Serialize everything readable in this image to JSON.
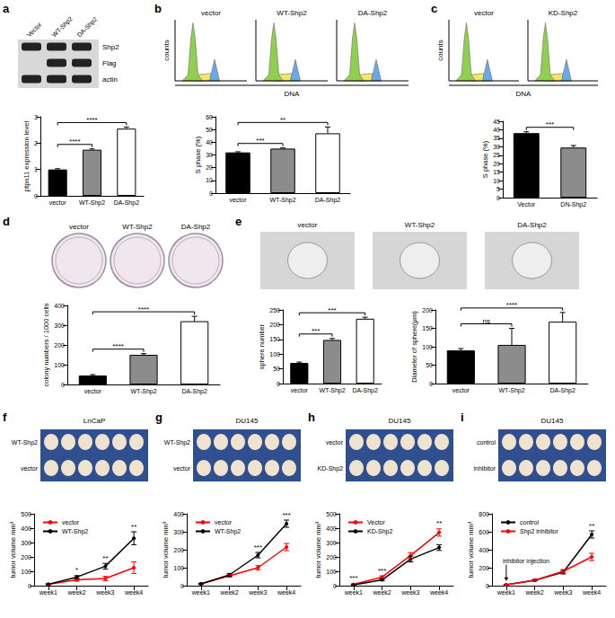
{
  "chart_data": [
    {
      "panel": "a",
      "type": "bar",
      "categories": [
        "vector",
        "WT-Shp2",
        "DA-Shp2"
      ],
      "values": [
        1.0,
        1.75,
        2.55
      ],
      "errors": [
        0.03,
        0.03,
        0.06
      ],
      "colors": [
        "#000000",
        "#8c8c8c",
        "#ffffff"
      ],
      "ylabel": "ptpn11 expression level",
      "ylim": [
        0,
        3
      ],
      "yticks": [
        0,
        1,
        2,
        3
      ],
      "grid": false,
      "annotations": [
        {
          "text": "****",
          "between": [
            "vector",
            "WT-Shp2"
          ]
        },
        {
          "text": "****",
          "between": [
            "vector",
            "DA-Shp2"
          ]
        }
      ]
    },
    {
      "panel": "b",
      "type": "bar",
      "categories": [
        "vector",
        "WT-Shp2",
        "DA-Shp2"
      ],
      "values": [
        32,
        35,
        47
      ],
      "errors": [
        0.5,
        0.5,
        5
      ],
      "colors": [
        "#000000",
        "#8c8c8c",
        "#ffffff"
      ],
      "ylabel": "S phase (%)",
      "ylim": [
        0,
        60
      ],
      "yticks": [
        0,
        10,
        20,
        30,
        40,
        50,
        60
      ],
      "grid": false,
      "annotations": [
        {
          "text": "***",
          "between": [
            "vector",
            "WT-Shp2"
          ]
        },
        {
          "text": "**",
          "between": [
            "vector",
            "DA-Shp2"
          ]
        }
      ]
    },
    {
      "panel": "c",
      "type": "bar",
      "categories": [
        "Vector",
        "DN-Shp2"
      ],
      "values": [
        38,
        29.5
      ],
      "errors": [
        0.8,
        1.2
      ],
      "colors": [
        "#000000",
        "#8c8c8c"
      ],
      "ylabel": "S phase (%)",
      "ylim": [
        0,
        45
      ],
      "yticks": [
        0,
        5,
        10,
        15,
        20,
        25,
        30,
        35,
        40,
        45
      ],
      "grid": false,
      "annotations": [
        {
          "text": "***",
          "between": [
            "Vector",
            "DN-Shp2"
          ]
        }
      ]
    },
    {
      "panel": "d",
      "type": "bar",
      "categories": [
        "vector",
        "WT-Shp2",
        "DA-Shp2"
      ],
      "values": [
        45,
        150,
        320
      ],
      "errors": [
        5,
        6,
        25
      ],
      "colors": [
        "#000000",
        "#8c8c8c",
        "#ffffff"
      ],
      "ylabel": "colony numbers / 1000 cells",
      "ylim": [
        0,
        400
      ],
      "yticks": [
        0,
        100,
        200,
        300,
        400
      ],
      "grid": false,
      "annotations": [
        {
          "text": "****",
          "between": [
            "vector",
            "WT-Shp2"
          ]
        },
        {
          "text": "****",
          "between": [
            "vector",
            "DA-Shp2"
          ]
        }
      ]
    },
    {
      "panel": "e",
      "type": "bar",
      "categories": [
        "vector",
        "WT-Shp2",
        "DA-Shp2"
      ],
      "values": [
        70,
        148,
        220
      ],
      "errors": [
        3,
        5,
        5
      ],
      "colors": [
        "#000000",
        "#8c8c8c",
        "#ffffff"
      ],
      "ylabel": "sphere number",
      "ylim": [
        0,
        250
      ],
      "yticks": [
        0,
        50,
        100,
        150,
        200,
        250
      ],
      "grid": false,
      "annotations": [
        {
          "text": "***",
          "between": [
            "vector",
            "WT-Shp2"
          ]
        },
        {
          "text": "***",
          "between": [
            "vector",
            "DA-Shp2"
          ]
        }
      ]
    },
    {
      "type": "bar",
      "categories": [
        "vector",
        "WT-Shp2",
        "DA-Shp2"
      ],
      "values": [
        90,
        105,
        168
      ],
      "errors": [
        5,
        45,
        25
      ],
      "colors": [
        "#000000",
        "#8c8c8c",
        "#ffffff"
      ],
      "ylabel": "Diameter of sphere(μm)",
      "ylim": [
        0,
        200
      ],
      "yticks": [
        0,
        50,
        100,
        150,
        200
      ],
      "grid": false,
      "annotations": [
        {
          "text": "ns",
          "between": [
            "vector",
            "WT-Shp2"
          ]
        },
        {
          "text": "****",
          "between": [
            "vector",
            "DA-Shp2"
          ]
        }
      ]
    },
    {
      "panel": "f",
      "type": "line",
      "categories": [
        "week1",
        "week2",
        "week3",
        "week4"
      ],
      "series": [
        {
          "name": "vector",
          "color": "#ff0000",
          "values": [
            10,
            40,
            50,
            125
          ],
          "errors": [
            3,
            8,
            15,
            40
          ]
        },
        {
          "name": "WT-Shp2",
          "color": "#000000",
          "values": [
            10,
            60,
            135,
            330
          ],
          "errors": [
            3,
            10,
            20,
            45
          ]
        }
      ],
      "ylabel": "tumor volume mm³",
      "ylim": [
        0,
        500
      ],
      "yticks": [
        0,
        100,
        200,
        300,
        400,
        500
      ],
      "grid": false,
      "legend": "upper left",
      "marker": "circle",
      "annotations": [
        {
          "text": "*",
          "at": "week2"
        },
        {
          "text": "**",
          "at": "week3"
        },
        {
          "text": "**",
          "at": "week4"
        }
      ]
    },
    {
      "panel": "g",
      "type": "line",
      "categories": [
        "week1",
        "week2",
        "week3",
        "week4"
      ],
      "series": [
        {
          "name": "vector",
          "color": "#ff0000",
          "values": [
            10,
            55,
            100,
            215
          ],
          "errors": [
            3,
            8,
            12,
            20
          ]
        },
        {
          "name": "WT-Shp2",
          "color": "#000000",
          "values": [
            10,
            60,
            170,
            345
          ],
          "errors": [
            3,
            8,
            15,
            20
          ]
        }
      ],
      "ylabel": "tumor volume mm³",
      "ylim": [
        0,
        400
      ],
      "yticks": [
        0,
        100,
        200,
        300,
        400
      ],
      "grid": false,
      "legend": "upper left",
      "marker": "circle",
      "annotations": [
        {
          "text": "***",
          "at": "week3"
        },
        {
          "text": "***",
          "at": "week4"
        }
      ]
    },
    {
      "panel": "h",
      "type": "line",
      "categories": [
        "week1",
        "week2",
        "week3",
        "week4"
      ],
      "series": [
        {
          "name": "Vector",
          "color": "#ff0000",
          "values": [
            10,
            60,
            210,
            370
          ],
          "errors": [
            3,
            8,
            20,
            25
          ]
        },
        {
          "name": "KD-Shp2",
          "color": "#000000",
          "values": [
            5,
            40,
            185,
            265
          ],
          "errors": [
            2,
            6,
            20,
            20
          ]
        }
      ],
      "ylabel": "tumor volume mm³",
      "ylim": [
        0,
        500
      ],
      "yticks": [
        0,
        100,
        200,
        300,
        400,
        500
      ],
      "grid": false,
      "legend": "upper left",
      "marker": "circle",
      "annotations": [
        {
          "text": "***",
          "at": "week1"
        },
        {
          "text": "***",
          "at": "week2"
        },
        {
          "text": "**",
          "at": "week4"
        }
      ]
    },
    {
      "panel": "i",
      "type": "line",
      "categories": [
        "week1",
        "week2",
        "week3",
        "week4"
      ],
      "series": [
        {
          "name": "control",
          "color": "#000000",
          "values": [
            10,
            60,
            150,
            570
          ],
          "errors": [
            3,
            8,
            20,
            40
          ]
        },
        {
          "name": "Shp2 inhibitor",
          "color": "#ff0000",
          "values": [
            10,
            60,
            160,
            320
          ],
          "errors": [
            3,
            8,
            20,
            40
          ]
        }
      ],
      "ylabel": "tumor volume mm³",
      "ylim": [
        0,
        800
      ],
      "yticks": [
        0,
        200,
        400,
        600,
        800
      ],
      "grid": false,
      "legend": "upper left",
      "marker": "circle",
      "annotations": [
        {
          "text": "**",
          "at": "week4"
        }
      ],
      "arrow_annotations": [
        {
          "text": "inhibitor injection",
          "at": "week1"
        }
      ]
    }
  ],
  "images": [
    {
      "lanes": [
        "Vector",
        "WT-Shp2",
        "DA-Shp2"
      ],
      "rows": [
        "Shp2",
        "Flag",
        "actin"
      ]
    },
    {
      "titles": [
        "vector",
        "WT-Shp2",
        "DA-Shp2"
      ],
      "ylabel": "counts",
      "xlabel": "DNA"
    },
    {
      "titles": [
        "vector",
        "KD-Shp2"
      ],
      "ylabel": "counts",
      "xlabel": "DNA"
    },
    {
      "titles": [
        "vector",
        "WT-Shp2",
        "DA-Shp2"
      ]
    },
    {
      "titles": [
        "vector",
        "WT-Shp2",
        "DA-Shp2"
      ]
    },
    {
      "title": "LnCaP",
      "rows": [
        "WT-Shp2",
        "vector"
      ]
    },
    {
      "title": "DU145",
      "rows": [
        "WT-Shp2",
        "vector"
      ]
    },
    {
      "title": "DU145",
      "rows": [
        "vector",
        "KD-Shp2"
      ]
    },
    {
      "title": "DU145",
      "rows": [
        "control",
        "inhibitor"
      ]
    }
  ]
}
